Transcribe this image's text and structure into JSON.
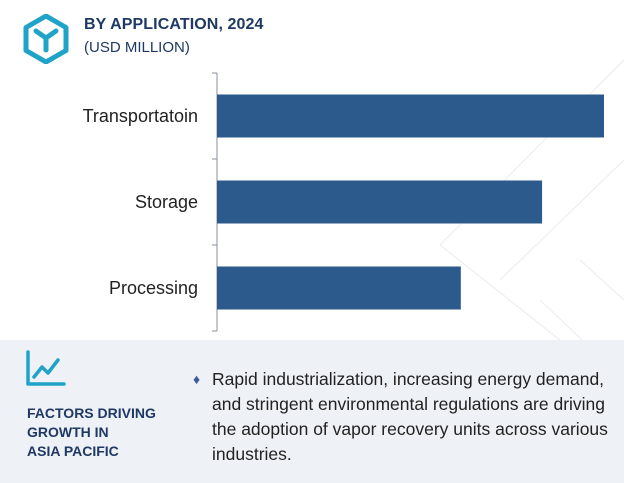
{
  "header": {
    "title": "BY APPLICATION, 2024",
    "subtitle": "(USD MILLION)",
    "icon": "hexagon-logo-icon"
  },
  "chart_data": {
    "type": "bar",
    "orientation": "horizontal",
    "categories": [
      "Transportatoin",
      "Storage",
      "Processing"
    ],
    "values": [
      100,
      84,
      63
    ],
    "bar_color": "#2c5a8c",
    "xlim": [
      0,
      100
    ],
    "grid": false,
    "xlabel": "",
    "ylabel": ""
  },
  "factors": {
    "icon": "line-chart-icon",
    "title_lines": [
      "FACTORS DRIVING",
      "GROWTH IN",
      "ASIA PACIFIC"
    ],
    "bullet_icon": "diamond-bullet-icon",
    "text": "Rapid industrialization, increasing energy demand, and stringent environmental regulations are driving the adoption of vapor recovery units across various industries."
  },
  "colors": {
    "accent": "#1fa3c8",
    "title": "#1f3864",
    "band": "#eef1f6"
  }
}
